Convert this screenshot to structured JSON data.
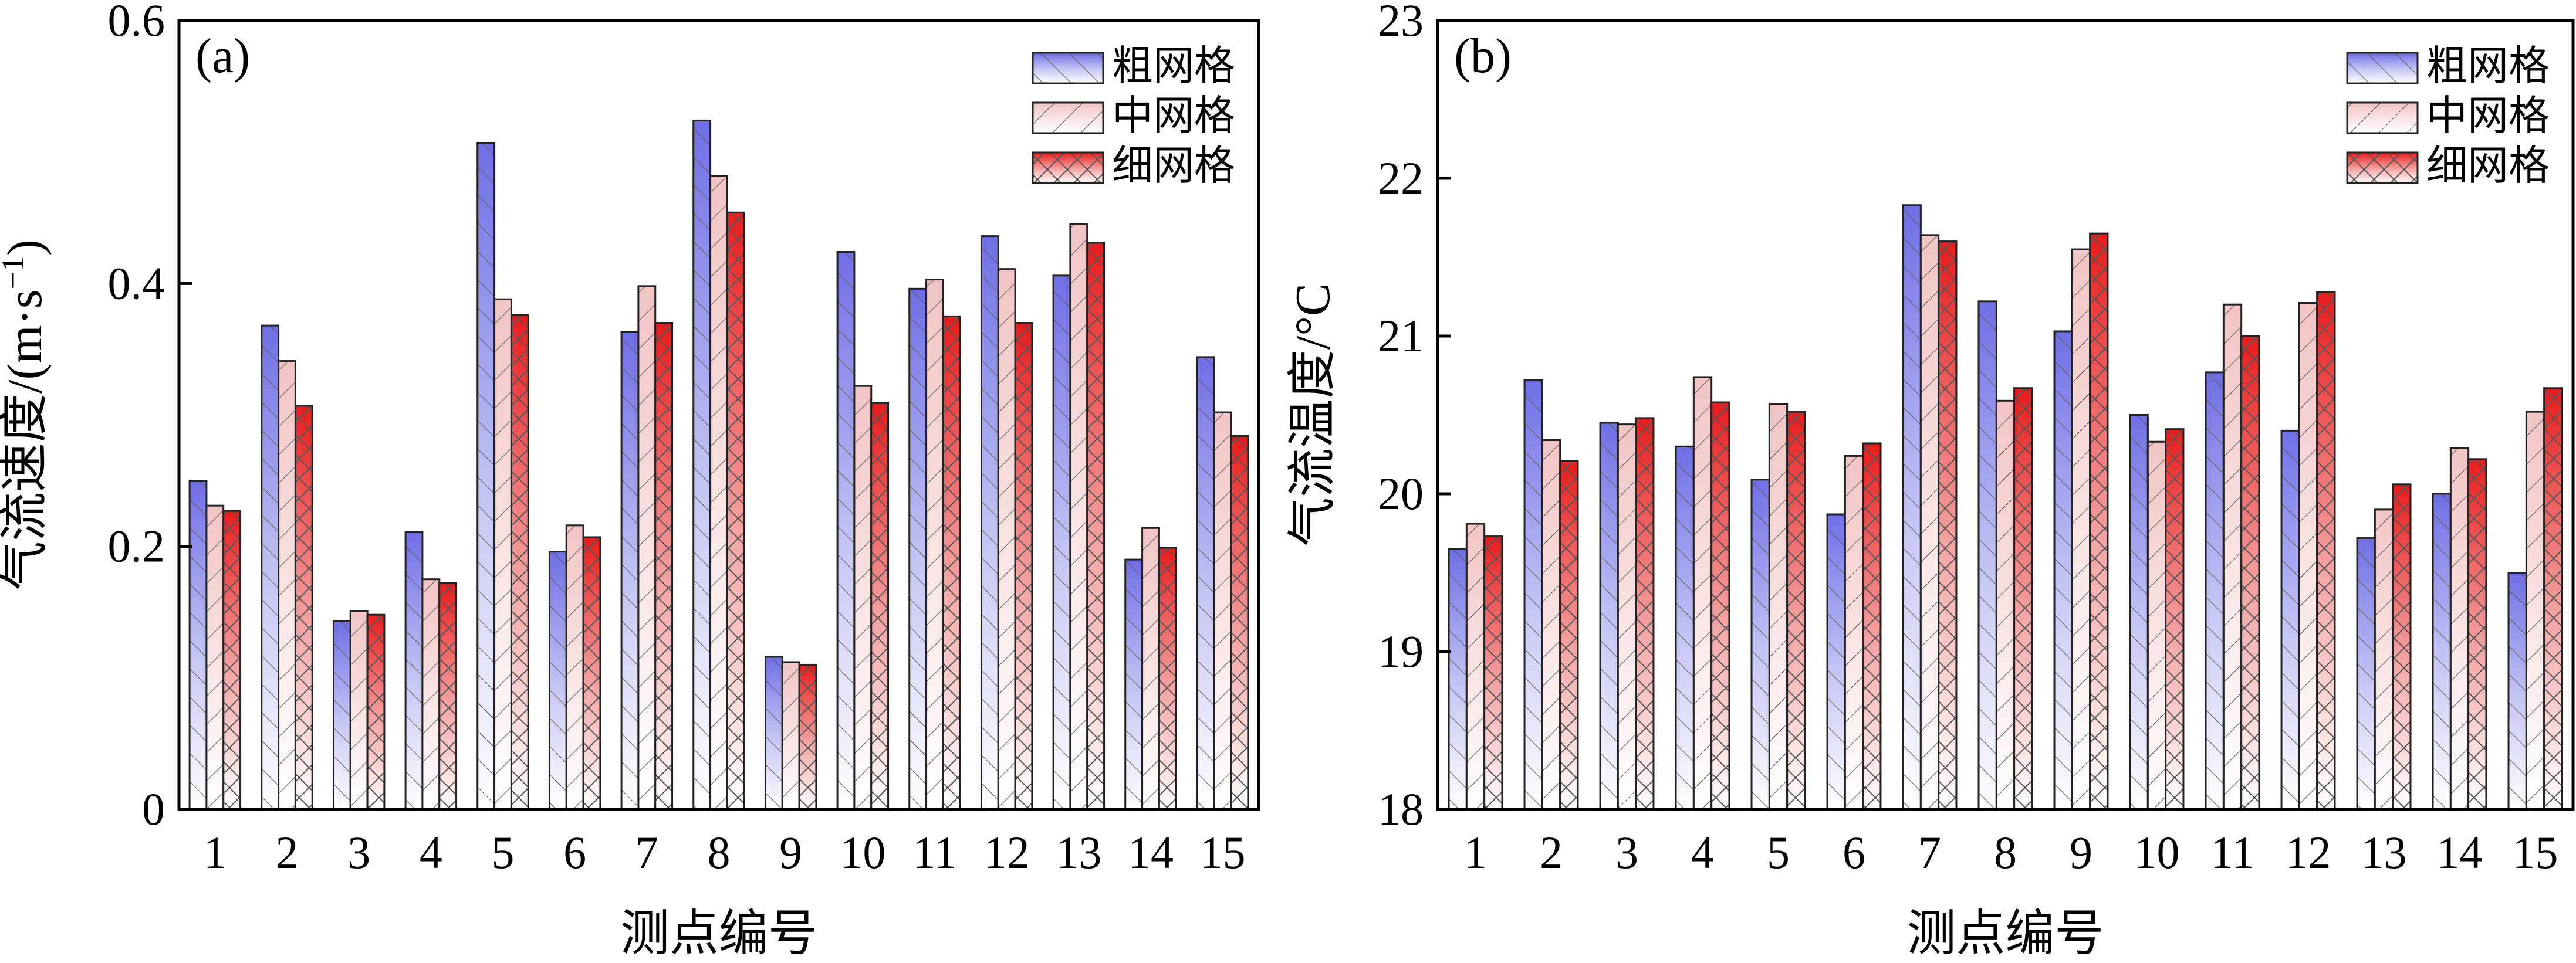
{
  "chart_data": [
    {
      "type": "bar",
      "panel_label": "(a)",
      "xlabel": "测点编号",
      "ylabel": "气流速度/(m·s⁻¹)",
      "ylabel_main": "气流速度/(m·s",
      "ylabel_sup": "−1",
      "ylabel_close": ")",
      "ylim": [
        0,
        0.6
      ],
      "yticks": [
        0,
        0.2,
        0.4,
        0.6
      ],
      "ytick_labels": [
        "0",
        "0.2",
        "0.4",
        "0.6"
      ],
      "categories": [
        "1",
        "2",
        "3",
        "4",
        "5",
        "6",
        "7",
        "8",
        "9",
        "10",
        "11",
        "12",
        "13",
        "14",
        "15"
      ],
      "legend_position": "top-right",
      "series": [
        {
          "name": "粗网格",
          "color": "#6f6fe6",
          "values": [
            0.25,
            0.368,
            0.143,
            0.211,
            0.507,
            0.196,
            0.363,
            0.524,
            0.116,
            0.424,
            0.396,
            0.436,
            0.406,
            0.19,
            0.344
          ]
        },
        {
          "name": "中网格",
          "color": "#f2c4c4",
          "values": [
            0.231,
            0.341,
            0.151,
            0.175,
            0.388,
            0.216,
            0.398,
            0.482,
            0.112,
            0.322,
            0.403,
            0.411,
            0.445,
            0.214,
            0.302
          ]
        },
        {
          "name": "细网格",
          "color": "#e81c1c",
          "values": [
            0.227,
            0.307,
            0.148,
            0.172,
            0.376,
            0.207,
            0.37,
            0.454,
            0.11,
            0.309,
            0.375,
            0.37,
            0.431,
            0.199,
            0.284
          ]
        }
      ]
    },
    {
      "type": "bar",
      "panel_label": "(b)",
      "xlabel": "测点编号",
      "ylabel": "气流温度/°C",
      "ylim": [
        18,
        23
      ],
      "yticks": [
        18,
        19,
        20,
        21,
        22,
        23
      ],
      "ytick_labels": [
        "18",
        "19",
        "20",
        "21",
        "22",
        "23"
      ],
      "categories": [
        "1",
        "2",
        "3",
        "4",
        "5",
        "6",
        "7",
        "8",
        "9",
        "10",
        "11",
        "12",
        "13",
        "14",
        "15"
      ],
      "legend_position": "top-right",
      "series": [
        {
          "name": "粗网格",
          "color": "#6f6fe6",
          "values": [
            19.65,
            20.72,
            20.45,
            20.3,
            20.09,
            19.87,
            21.83,
            21.22,
            21.03,
            20.5,
            20.77,
            20.4,
            19.72,
            20.0,
            19.5
          ]
        },
        {
          "name": "中网格",
          "color": "#f2c4c4",
          "values": [
            19.81,
            20.34,
            20.44,
            20.74,
            20.57,
            20.24,
            21.64,
            20.59,
            21.55,
            20.33,
            21.2,
            21.21,
            19.9,
            20.29,
            20.52
          ]
        },
        {
          "name": "细网格",
          "color": "#e81c1c",
          "values": [
            19.73,
            20.21,
            20.48,
            20.58,
            20.52,
            20.32,
            21.6,
            20.67,
            21.65,
            20.41,
            21.0,
            21.28,
            20.06,
            20.22,
            20.67
          ]
        }
      ]
    }
  ]
}
